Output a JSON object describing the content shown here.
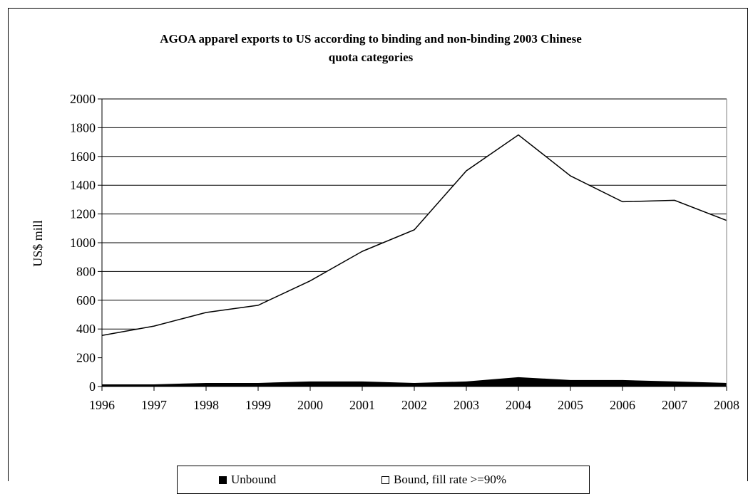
{
  "chart_data": {
    "type": "area",
    "stacked": true,
    "title": "AGOA apparel exports to US according to binding and non-binding 2003 Chinese quota categories",
    "title_lines": [
      "AGOA apparel exports to US according to binding and non-binding 2003 Chinese",
      "quota categories"
    ],
    "xlabel": "",
    "ylabel": "US$ mill",
    "x": [
      "1996",
      "1997",
      "1998",
      "1999",
      "2000",
      "2001",
      "2002",
      "2003",
      "2004",
      "2005",
      "2006",
      "2007",
      "2008"
    ],
    "ylim": [
      0,
      2000
    ],
    "yticks": [
      "0",
      "200",
      "400",
      "600",
      "800",
      "1000",
      "1200",
      "1400",
      "1600",
      "1800",
      "2000"
    ],
    "grid": true,
    "legend_position": "bottom",
    "series": [
      {
        "name": "Unbound",
        "color": "#000000",
        "values": [
          15,
          15,
          25,
          25,
          35,
          35,
          25,
          35,
          65,
          45,
          45,
          35,
          25
        ]
      },
      {
        "name": "Bound, fill rate >=90%",
        "color": "#ffffff",
        "values": [
          340,
          405,
          490,
          540,
          700,
          905,
          1065,
          1465,
          1685,
          1420,
          1240,
          1260,
          1130
        ]
      }
    ]
  },
  "legend": {
    "unbound_label": "Unbound",
    "bound_label": "Bound, fill rate >=90%"
  }
}
